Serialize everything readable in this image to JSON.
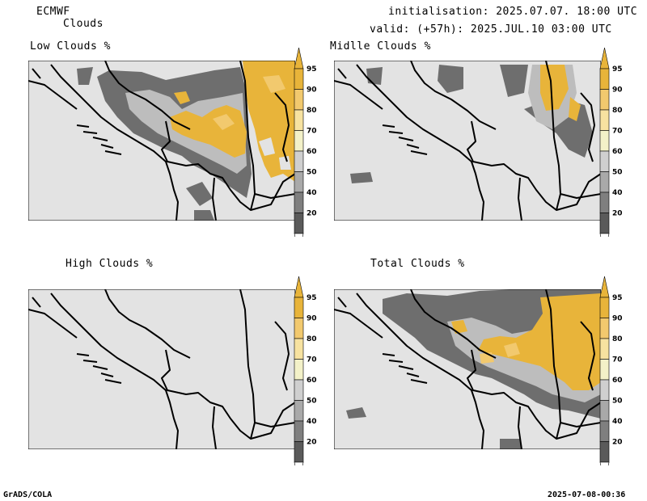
{
  "header": {
    "model": "ECMWF",
    "parameter": "Clouds",
    "initialisation": "initialisation: 2025.07.07. 18:00 UTC",
    "valid": "valid: (+57h): 2025.JUL.10 03:00 UTC"
  },
  "panels": [
    {
      "title": "Low Clouds %"
    },
    {
      "title": "Midlle Clouds %"
    },
    {
      "title": "High Clouds %"
    },
    {
      "title": "Total Clouds %"
    }
  ],
  "colorbar": {
    "labels": [
      "95",
      "90",
      "80",
      "70",
      "60",
      "50",
      "40",
      "20"
    ],
    "colors": [
      "#e8b43a",
      "#f2c96e",
      "#f7e2a0",
      "#f3f1c8",
      "#cfcfcf",
      "#a9a9a9",
      "#7f7f7f",
      "#5a5a5a"
    ]
  },
  "footer": {
    "left": "GrADS/COLA",
    "right": "2025-07-08-00:36"
  }
}
